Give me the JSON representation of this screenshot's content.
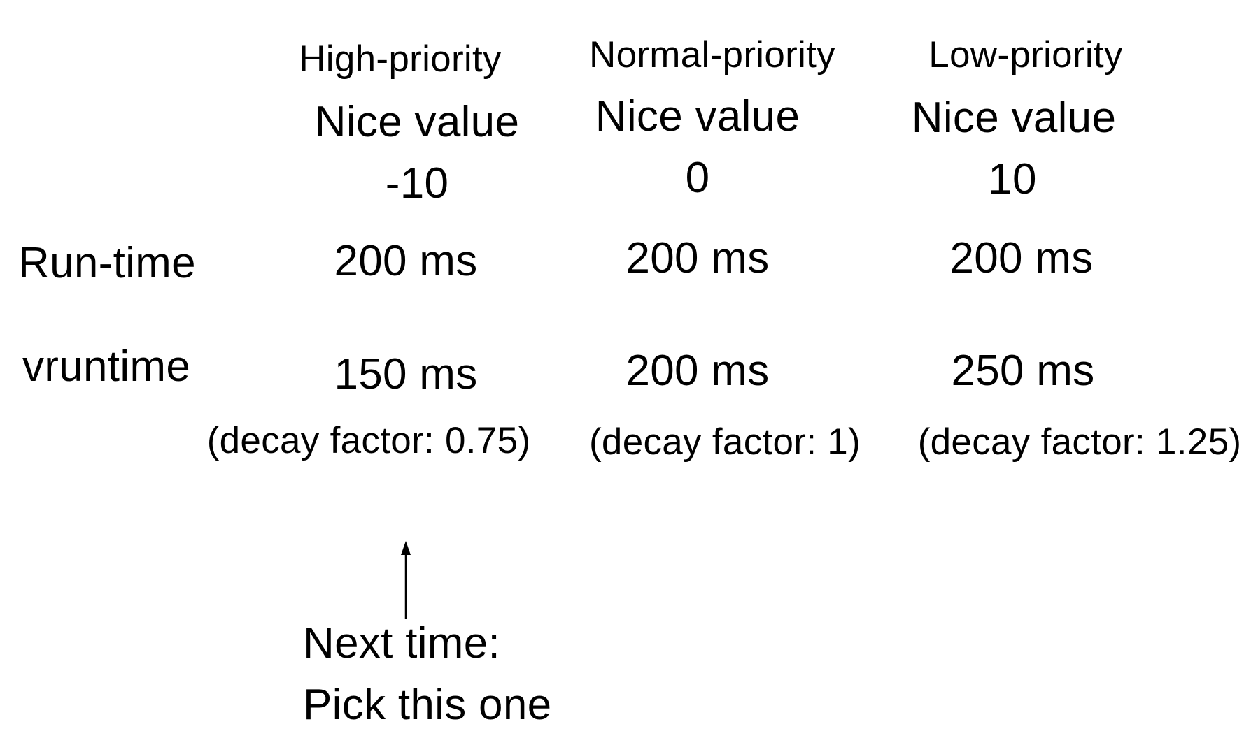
{
  "columns": [
    {
      "header": "High-priority",
      "nice_label": "Nice value",
      "nice_value": "-10",
      "runtime": "200 ms",
      "vruntime": "150 ms",
      "decay": "(decay factor: 0.75)"
    },
    {
      "header": "Normal-priority",
      "nice_label": "Nice value",
      "nice_value": "0",
      "runtime": "200 ms",
      "vruntime": "200 ms",
      "decay": "(decay factor: 1)"
    },
    {
      "header": "Low-priority",
      "nice_label": "Nice value",
      "nice_value": "10",
      "runtime": "200 ms",
      "vruntime": "250 ms",
      "decay": "(decay factor: 1.25)"
    }
  ],
  "rows": {
    "runtime_label": "Run-time",
    "vruntime_label": "vruntime"
  },
  "annotation": {
    "line1": "Next time:",
    "line2": "Pick this one"
  }
}
